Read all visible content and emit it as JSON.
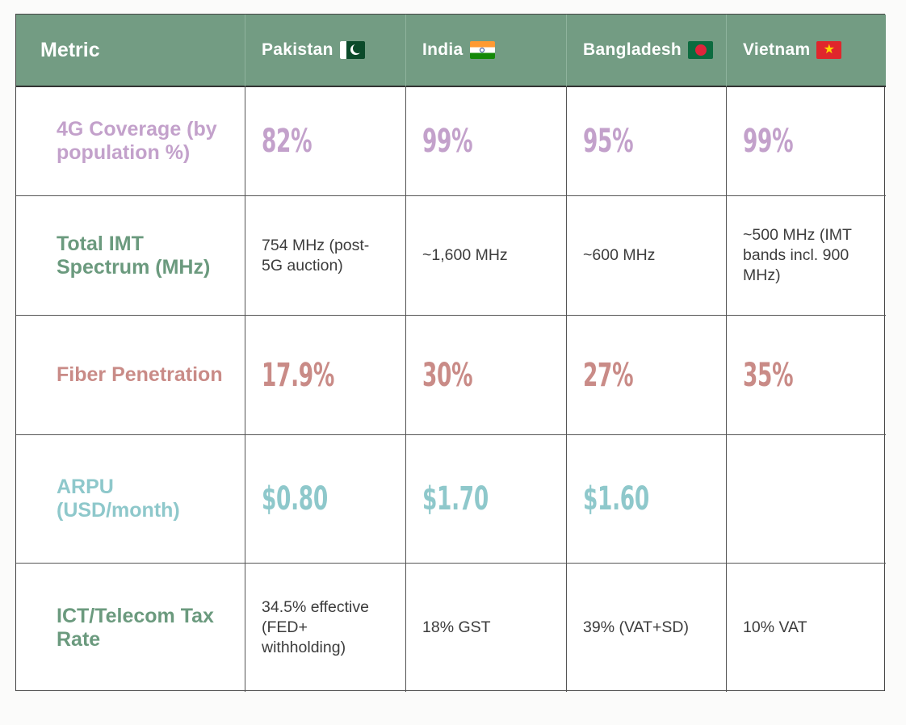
{
  "header": {
    "metric": "Metric",
    "countries": [
      "Pakistan",
      "India",
      "Bangladesh",
      "Vietnam"
    ]
  },
  "rows": [
    {
      "metric": "4G Coverage (by population %)",
      "values": [
        "82%",
        "99%",
        "95%",
        "99%"
      ],
      "color": "#c3a1cb"
    },
    {
      "metric": "Total IMT Spectrum (MHz)",
      "values": [
        "754 MHz (post-5G auction)",
        "~1,600 MHz",
        "~600 MHz",
        "~500 MHz (IMT bands incl. 900 MHz)"
      ],
      "color": "#6b9a7e"
    },
    {
      "metric": "Fiber Penetration",
      "values": [
        "17.9%",
        "30%",
        "27%",
        "35%"
      ],
      "color": "#c98b87"
    },
    {
      "metric": "ARPU (USD/month)",
      "values": [
        "$0.80",
        "$1.70",
        "$1.60",
        ""
      ],
      "color": "#8ec8cb"
    },
    {
      "metric": "ICT/Telecom Tax Rate",
      "values": [
        "34.5% effective (FED+ withholding)",
        "18% GST",
        "39% (VAT+SD)",
        "10% VAT"
      ],
      "color": "#6b9a7e"
    }
  ],
  "colors": {
    "header_bg": "#739c83",
    "accent_purple": "#c3a1cb",
    "accent_green": "#6b9a7e",
    "accent_red": "#c98b87",
    "accent_teal": "#8ec8cb"
  },
  "icons": {
    "pakistan": "pakistan-flag-icon",
    "india": "india-flag-icon",
    "bangladesh": "bangladesh-flag-icon",
    "vietnam": "vietnam-flag-icon"
  }
}
